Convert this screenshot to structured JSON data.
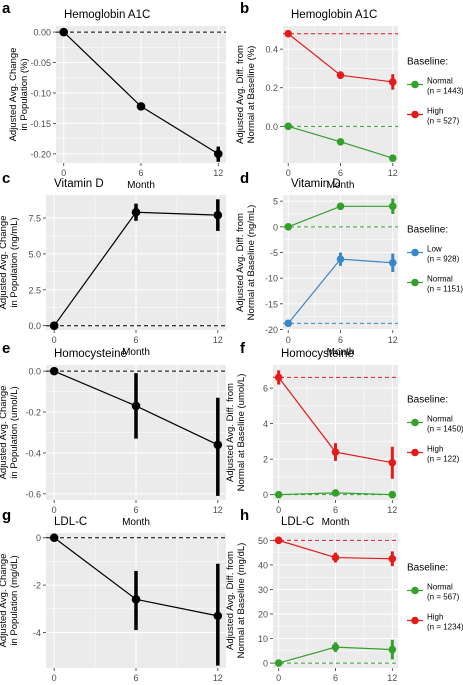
{
  "colors": {
    "panel_bg": "#ebebeb",
    "grid": "#ffffff",
    "ink": "#000000",
    "tick_text": "#4d4d4d",
    "red": "#e41a1c",
    "green": "#33a02c",
    "blue": "#3a87c8"
  },
  "chart_data": [
    {
      "id": "a",
      "letter": "a",
      "type": "line",
      "title": "Hemoglobin A1C",
      "xlabel": "Month",
      "ylabel": [
        "Adjusted Avg. Change",
        "in Population (%)"
      ],
      "x_ticks": [
        0,
        6,
        12
      ],
      "ylim": [
        -0.215,
        0.01
      ],
      "y_ticks": [
        {
          "v": 0,
          "label": "0.00"
        },
        {
          "v": -0.05,
          "label": "-0.05"
        },
        {
          "v": -0.1,
          "label": "-0.10"
        },
        {
          "v": -0.15,
          "label": "-0.15"
        },
        {
          "v": -0.2,
          "label": "-0.20"
        }
      ],
      "hlines": [
        {
          "y": 0,
          "color": "ink"
        }
      ],
      "series": [
        {
          "color": "ink",
          "x": [
            0,
            6,
            12
          ],
          "y": [
            0,
            -0.122,
            -0.2
          ],
          "lo": [
            0,
            -0.128,
            -0.213
          ],
          "hi": [
            0,
            -0.116,
            -0.188
          ]
        }
      ]
    },
    {
      "id": "b",
      "letter": "b",
      "type": "line",
      "title": "Hemoglobin A1C",
      "xlabel": "Month",
      "ylabel": [
        "Adjusted Avg. Diff. from",
        "Normal at Baseline (%)"
      ],
      "x_ticks": [
        0,
        6,
        12
      ],
      "ylim": [
        -0.19,
        0.52
      ],
      "y_ticks": [
        {
          "v": 0.4,
          "label": "0.4"
        },
        {
          "v": 0.2,
          "label": "0.2"
        },
        {
          "v": 0.0,
          "label": "0.0"
        }
      ],
      "hlines": [
        {
          "y": 0.48,
          "color": "red"
        },
        {
          "y": 0,
          "color": "green"
        }
      ],
      "legend": {
        "title": "Baseline:",
        "items": [
          {
            "label": "Normal",
            "n": "(n = 1443)",
            "color": "green"
          },
          {
            "label": "High",
            "n": "(n = 527)",
            "color": "red"
          }
        ]
      },
      "series": [
        {
          "name": "High",
          "color": "red",
          "x": [
            0,
            6,
            12
          ],
          "y": [
            0.48,
            0.265,
            0.23
          ],
          "lo": [
            0.465,
            0.245,
            0.19
          ],
          "hi": [
            0.495,
            0.285,
            0.27
          ]
        },
        {
          "name": "Normal",
          "color": "green",
          "x": [
            0,
            6,
            12
          ],
          "y": [
            0,
            -0.08,
            -0.165
          ],
          "lo": [
            0,
            -0.09,
            -0.175
          ],
          "hi": [
            0,
            -0.07,
            -0.155
          ]
        }
      ]
    },
    {
      "id": "c",
      "letter": "c",
      "type": "line",
      "title": "Vitamin D",
      "xlabel": "Month",
      "ylabel": [
        "Adjusted Avg. Change",
        "in Population (ng/mL)"
      ],
      "x_ticks": [
        0,
        6,
        12
      ],
      "ylim": [
        -0.3,
        9.1
      ],
      "y_ticks": [
        {
          "v": 7.5,
          "label": "7.5"
        },
        {
          "v": 5.0,
          "label": "5.0"
        },
        {
          "v": 2.5,
          "label": "2.5"
        },
        {
          "v": 0.0,
          "label": "0.0"
        }
      ],
      "hlines": [
        {
          "y": 0,
          "color": "ink"
        }
      ],
      "series": [
        {
          "color": "ink",
          "x": [
            0,
            6,
            12
          ],
          "y": [
            0,
            7.9,
            7.7
          ],
          "lo": [
            0,
            7.3,
            6.6
          ],
          "hi": [
            0,
            8.5,
            8.8
          ]
        }
      ]
    },
    {
      "id": "d",
      "letter": "d",
      "type": "line",
      "title": "Vitamin D",
      "xlabel": "Month",
      "ylabel": [
        "Adjusted Avg. Diff. from",
        "Normal at Baseline (ng/mL)"
      ],
      "x_ticks": [
        0,
        6,
        12
      ],
      "ylim": [
        -20.1,
        6.2
      ],
      "y_ticks": [
        {
          "v": 5,
          "label": "5"
        },
        {
          "v": 0,
          "label": "0"
        },
        {
          "v": -5,
          "label": "-5"
        },
        {
          "v": -10,
          "label": "-10"
        },
        {
          "v": -15,
          "label": "-15"
        },
        {
          "v": -20,
          "label": "-20"
        }
      ],
      "hlines": [
        {
          "y": 0,
          "color": "green"
        },
        {
          "y": -18.8,
          "color": "blue"
        }
      ],
      "legend": {
        "title": "Baseline:",
        "items": [
          {
            "label": "Low",
            "n": "(n = 928)",
            "color": "blue"
          },
          {
            "label": "Normal",
            "n": "(n = 1151)",
            "color": "green"
          }
        ]
      },
      "series": [
        {
          "name": "Normal",
          "color": "green",
          "x": [
            0,
            6,
            12
          ],
          "y": [
            0,
            4.0,
            4.0
          ],
          "lo": [
            0,
            3.4,
            2.5
          ],
          "hi": [
            0,
            4.6,
            5.5
          ]
        },
        {
          "name": "Low",
          "color": "blue",
          "x": [
            0,
            6,
            12
          ],
          "y": [
            -18.8,
            -6.3,
            -7.0
          ],
          "lo": [
            -19.3,
            -7.6,
            -8.8
          ],
          "hi": [
            -18.3,
            -5.0,
            -5.2
          ]
        }
      ]
    },
    {
      "id": "e",
      "letter": "e",
      "type": "line",
      "title": "Homocysteine",
      "xlabel": "Month",
      "ylabel": [
        "Adjusted Avg. Change",
        "in Population (umol/L)"
      ],
      "x_ticks": [
        0,
        6,
        12
      ],
      "ylim": [
        -0.63,
        0.03
      ],
      "y_ticks": [
        {
          "v": 0.0,
          "label": "0.0"
        },
        {
          "v": -0.2,
          "label": "-0.2"
        },
        {
          "v": -0.4,
          "label": "-0.4"
        },
        {
          "v": -0.6,
          "label": "-0.6"
        }
      ],
      "hlines": [
        {
          "y": 0,
          "color": "ink"
        }
      ],
      "series": [
        {
          "color": "ink",
          "x": [
            0,
            6,
            12
          ],
          "y": [
            0,
            -0.17,
            -0.36
          ],
          "lo": [
            0,
            -0.33,
            -0.61
          ],
          "hi": [
            0,
            -0.01,
            -0.13
          ]
        }
      ]
    },
    {
      "id": "f",
      "letter": "f",
      "type": "line",
      "title": "Homocysteine",
      "xlabel": "Month",
      "ylabel": [
        "Adjusted Avg. Diff. from",
        "Normal at Baseline (umol/L)"
      ],
      "x_ticks": [
        0,
        6,
        12
      ],
      "ylim": [
        -0.3,
        7.3
      ],
      "y_ticks": [
        {
          "v": 6,
          "label": "6"
        },
        {
          "v": 4,
          "label": "4"
        },
        {
          "v": 2,
          "label": "2"
        },
        {
          "v": 0,
          "label": "0"
        }
      ],
      "hlines": [
        {
          "y": 6.6,
          "color": "red"
        },
        {
          "y": 0,
          "color": "green"
        }
      ],
      "legend": {
        "title": "Baseline:",
        "items": [
          {
            "label": "Normal",
            "n": "(n = 1450)",
            "color": "green"
          },
          {
            "label": "High",
            "n": "(n = 122)",
            "color": "red"
          }
        ]
      },
      "series": [
        {
          "name": "High",
          "color": "red",
          "x": [
            0,
            6,
            12
          ],
          "y": [
            6.6,
            2.4,
            1.8
          ],
          "lo": [
            6.2,
            1.9,
            0.9
          ],
          "hi": [
            7.0,
            2.9,
            2.7
          ]
        },
        {
          "name": "Normal",
          "color": "green",
          "x": [
            0,
            6,
            12
          ],
          "y": [
            0,
            0.1,
            0.0
          ],
          "lo": [
            0,
            0.0,
            -0.1
          ],
          "hi": [
            0,
            0.2,
            0.1
          ]
        }
      ]
    },
    {
      "id": "g",
      "letter": "g",
      "type": "line",
      "title": "LDL-C",
      "xlabel": "Month",
      "ylabel": [
        "Adjusted Avg. Change",
        "in Population (mg/dL)"
      ],
      "x_ticks": [
        0,
        6,
        12
      ],
      "ylim": [
        -5.5,
        0.2
      ],
      "y_ticks": [
        {
          "v": 0,
          "label": "0"
        },
        {
          "v": -2,
          "label": "-2"
        },
        {
          "v": -4,
          "label": "-4"
        }
      ],
      "hlines": [
        {
          "y": 0,
          "color": "ink"
        }
      ],
      "series": [
        {
          "color": "ink",
          "x": [
            0,
            6,
            12
          ],
          "y": [
            0,
            -2.6,
            -3.3
          ],
          "lo": [
            0,
            -3.9,
            -5.4
          ],
          "hi": [
            0,
            -1.4,
            -1.1
          ]
        }
      ]
    },
    {
      "id": "h",
      "letter": "h",
      "type": "line",
      "title": "LDL-C",
      "xlabel": "Month",
      "ylabel": [
        "Adjusted Avg. Diff. from",
        "Normal at Baseline (mg/dL)"
      ],
      "x_ticks": [
        0,
        6,
        12
      ],
      "ylim": [
        -2,
        53
      ],
      "y_ticks": [
        {
          "v": 50,
          "label": "50"
        },
        {
          "v": 40,
          "label": "40"
        },
        {
          "v": 30,
          "label": "30"
        },
        {
          "v": 20,
          "label": "20"
        },
        {
          "v": 10,
          "label": "10"
        },
        {
          "v": 0,
          "label": "0"
        }
      ],
      "hlines": [
        {
          "y": 50,
          "color": "red"
        },
        {
          "y": 0,
          "color": "green"
        }
      ],
      "legend": {
        "title": "Baseline:",
        "items": [
          {
            "label": "Normal",
            "n": "(n = 567)",
            "color": "green"
          },
          {
            "label": "High",
            "n": "(n = 1234)",
            "color": "red"
          }
        ]
      },
      "series": [
        {
          "name": "High",
          "color": "red",
          "x": [
            0,
            6,
            12
          ],
          "y": [
            50,
            43,
            42.5
          ],
          "lo": [
            48.5,
            41,
            39.5
          ],
          "hi": [
            51.5,
            45,
            45.5
          ]
        },
        {
          "name": "Normal",
          "color": "green",
          "x": [
            0,
            6,
            12
          ],
          "y": [
            0,
            6.5,
            5.5
          ],
          "lo": [
            0,
            4.5,
            1.5
          ],
          "hi": [
            0,
            8.5,
            9.5
          ]
        }
      ]
    }
  ]
}
